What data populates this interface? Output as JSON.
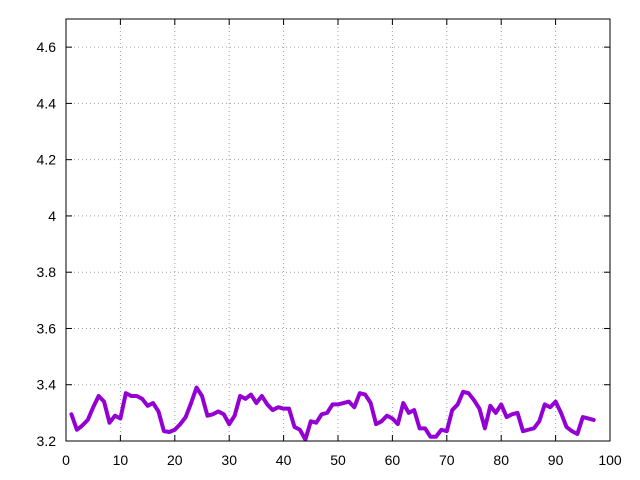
{
  "chart_data": {
    "type": "line",
    "title": "",
    "xlabel": "",
    "ylabel": "",
    "xlim": [
      0,
      100
    ],
    "ylim": [
      3.2,
      4.7
    ],
    "grid": true,
    "legend": "none",
    "x_ticks": [
      0,
      10,
      20,
      30,
      40,
      50,
      60,
      70,
      80,
      90,
      100
    ],
    "x_tick_labels": [
      "0",
      "10",
      "20",
      "30",
      "40",
      "50",
      "60",
      "70",
      "80",
      "90",
      "100"
    ],
    "y_ticks": [
      3.2,
      3.4,
      3.6,
      3.8,
      4.0,
      4.2,
      4.4,
      4.6
    ],
    "y_tick_labels": [
      "3.2",
      "3.4",
      "3.6",
      "3.8",
      "4",
      "4.2",
      "4.4",
      "4.6"
    ],
    "series": [
      {
        "color": "#9400d3",
        "x": [
          1,
          2,
          3,
          4,
          5,
          6,
          7,
          8,
          9,
          10,
          11,
          12,
          13,
          14,
          15,
          16,
          17,
          18,
          19,
          20,
          21,
          22,
          23,
          24,
          25,
          26,
          27,
          28,
          29,
          30,
          31,
          32,
          33,
          34,
          35,
          36,
          37,
          38,
          39,
          40,
          41,
          42,
          43,
          44,
          45,
          46,
          47,
          48,
          49,
          50,
          51,
          52,
          53,
          54,
          55,
          56,
          57,
          58,
          59,
          60,
          61,
          62,
          63,
          64,
          65,
          66,
          67,
          68,
          69,
          70,
          71,
          72,
          73,
          74,
          75,
          76,
          77,
          78,
          79,
          80,
          81,
          82,
          83,
          84,
          85,
          86,
          87,
          88,
          89,
          90,
          91,
          92,
          93,
          94,
          95,
          96,
          97
        ],
        "y": [
          3.295,
          3.24,
          3.255,
          3.275,
          3.32,
          3.36,
          3.34,
          3.265,
          3.29,
          3.28,
          3.37,
          3.36,
          3.36,
          3.35,
          3.325,
          3.335,
          3.305,
          3.235,
          3.232,
          3.24,
          3.26,
          3.285,
          3.335,
          3.39,
          3.36,
          3.29,
          3.295,
          3.305,
          3.295,
          3.26,
          3.29,
          3.36,
          3.35,
          3.365,
          3.335,
          3.36,
          3.33,
          3.31,
          3.32,
          3.315,
          3.315,
          3.25,
          3.24,
          3.205,
          3.27,
          3.265,
          3.295,
          3.3,
          3.33,
          3.33,
          3.335,
          3.34,
          3.32,
          3.37,
          3.365,
          3.335,
          3.26,
          3.27,
          3.29,
          3.28,
          3.26,
          3.335,
          3.3,
          3.31,
          3.245,
          3.245,
          3.215,
          3.215,
          3.24,
          3.235,
          3.31,
          3.33,
          3.375,
          3.37,
          3.345,
          3.315,
          3.245,
          3.325,
          3.3,
          3.33,
          3.285,
          3.295,
          3.3,
          3.235,
          3.24,
          3.245,
          3.27,
          3.33,
          3.32,
          3.34,
          3.3,
          3.25,
          3.235,
          3.225,
          3.285,
          3.28,
          3.275
        ]
      }
    ]
  }
}
